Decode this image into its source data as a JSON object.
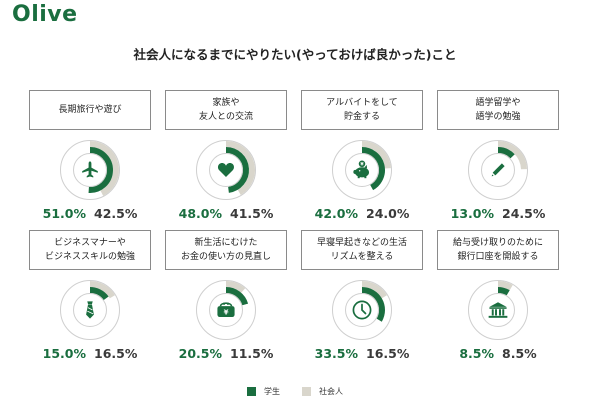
{
  "brand": {
    "logo": "Olive",
    "color_primary": "#1a6e3f",
    "color_secondary": "#d9d6cc"
  },
  "chart_data": {
    "type": "donut",
    "title": "社会人になるまでにやりたい(やっておけば良かった)こと",
    "series": [
      {
        "name": "学生",
        "color": "#1a6e3f"
      },
      {
        "name": "社会人",
        "color": "#d9d6cc"
      }
    ],
    "categories": [
      {
        "label": "長期旅行や遊び",
        "icon": "airplane-icon",
        "student": 51.0,
        "worker": 42.5,
        "student_text": "51.0%",
        "worker_text": "42.5%"
      },
      {
        "label": "家族や\n友人との交流",
        "icon": "heart-icon",
        "student": 48.0,
        "worker": 41.5,
        "student_text": "48.0%",
        "worker_text": "41.5%"
      },
      {
        "label": "アルバイトをして\n貯金する",
        "icon": "piggy-bank-icon",
        "student": 42.0,
        "worker": 24.0,
        "student_text": "42.0%",
        "worker_text": "24.0%"
      },
      {
        "label": "語学留学や\n語学の勉強",
        "icon": "pencil-icon",
        "student": 13.0,
        "worker": 24.5,
        "student_text": "13.0%",
        "worker_text": "24.5%"
      },
      {
        "label": "ビジネスマナーや\nビジネススキルの勉強",
        "icon": "necktie-icon",
        "student": 15.0,
        "worker": 16.5,
        "student_text": "15.0%",
        "worker_text": "16.5%"
      },
      {
        "label": "新生活にむけた\nお金の使い方の見直し",
        "icon": "wallet-yen-icon",
        "student": 20.5,
        "worker": 11.5,
        "student_text": "20.5%",
        "worker_text": "11.5%"
      },
      {
        "label": "早寝早起きなどの生活\nリズムを整える",
        "icon": "clock-icon",
        "student": 33.5,
        "worker": 16.5,
        "student_text": "33.5%",
        "worker_text": "16.5%"
      },
      {
        "label": "給与受け取りのために\n銀行口座を開設する",
        "icon": "bank-icon",
        "student": 8.5,
        "worker": 8.5,
        "student_text": "8.5%",
        "worker_text": "8.5%"
      }
    ]
  }
}
